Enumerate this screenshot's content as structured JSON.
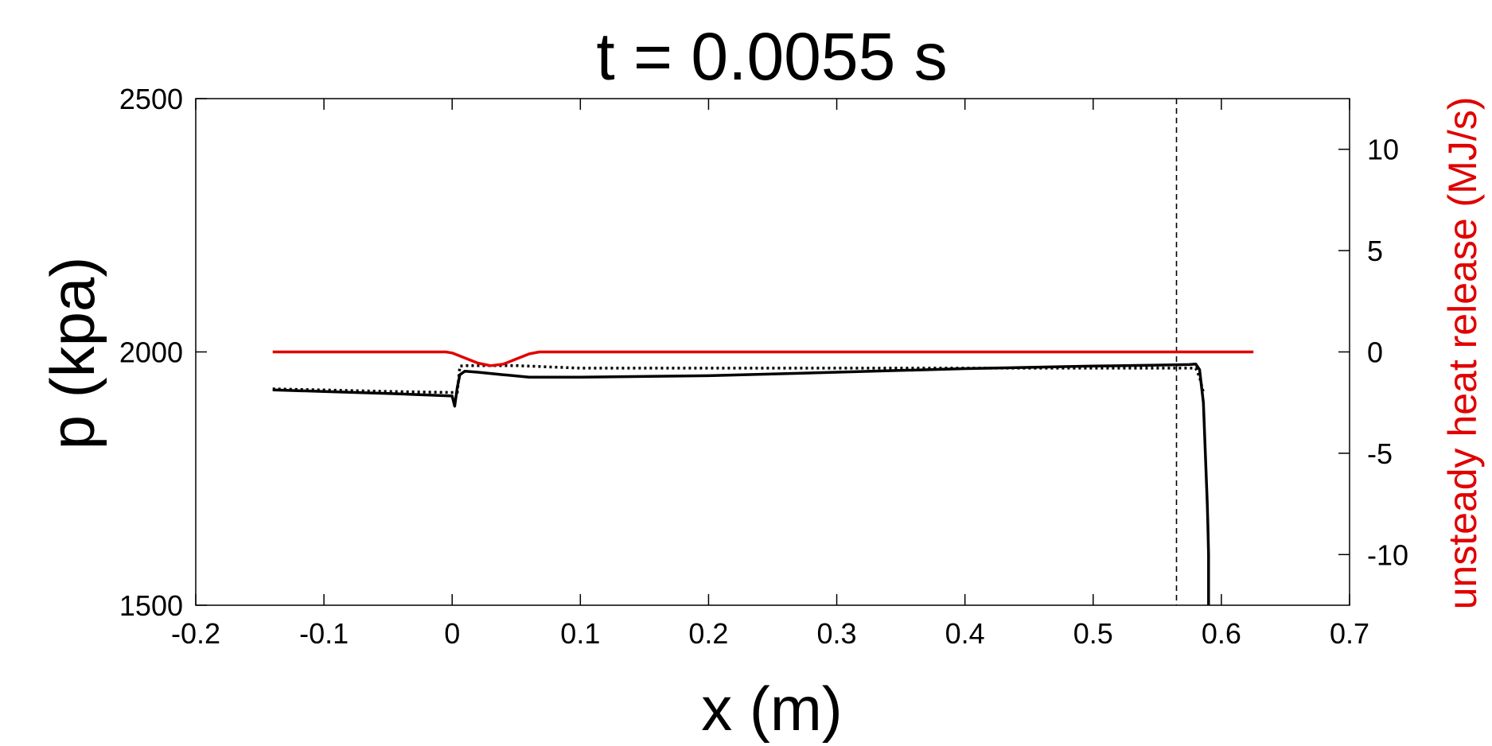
{
  "chart_data": {
    "type": "line",
    "title": "t = 0.0055 s",
    "xlabel": "x (m)",
    "ylabel": "p (kpa)",
    "y2label": "unsteady heat release (MJ/s)",
    "xlim": [
      -0.2,
      0.7
    ],
    "ylim": [
      1500,
      2500
    ],
    "y2lim": [
      -12.5,
      12.5
    ],
    "xticks": [
      -0.2,
      -0.1,
      0,
      0.1,
      0.2,
      0.3,
      0.4,
      0.5,
      0.6,
      0.7
    ],
    "xtick_labels": [
      "-0.2",
      "-0.1",
      "0",
      "0.1",
      "0.2",
      "0.3",
      "0.4",
      "0.5",
      "0.6",
      "0.7"
    ],
    "yticks": [
      1500,
      2000,
      2500
    ],
    "ytick_labels": [
      "1500",
      "2000",
      "2500"
    ],
    "y2ticks": [
      -10,
      -5,
      0,
      5,
      10
    ],
    "y2tick_labels": [
      "-10",
      "-5",
      "0",
      "5",
      "10"
    ],
    "grid": false,
    "colors": {
      "pressure": "#000000",
      "heat_release": "#e00000",
      "axes": "#000000"
    },
    "series": [
      {
        "axis": "left",
        "style": "solid",
        "color": "#000000",
        "x": [
          -0.14,
          -0.1,
          -0.05,
          0.0,
          0.002,
          0.004,
          0.006,
          0.01,
          0.02,
          0.04,
          0.06,
          0.1,
          0.2,
          0.3,
          0.4,
          0.5,
          0.55,
          0.575,
          0.58,
          0.583,
          0.586,
          0.589,
          0.5895,
          0.59,
          0.59
        ],
        "y": [
          1925,
          1922,
          1918,
          1913,
          1893,
          1930,
          1955,
          1962,
          1960,
          1955,
          1950,
          1950,
          1953,
          1960,
          1967,
          1972,
          1974,
          1975,
          1976,
          1965,
          1900,
          1700,
          1655,
          1600,
          1500
        ]
      },
      {
        "axis": "left",
        "style": "dotted",
        "color": "#000000",
        "x": [
          -0.14,
          -0.1,
          -0.05,
          0.0,
          0.004,
          0.006,
          0.01,
          0.05,
          0.1,
          0.2,
          0.3,
          0.4,
          0.5,
          0.58,
          0.583,
          0.586
        ],
        "y": [
          1927,
          1925,
          1922,
          1920,
          1920,
          1972,
          1973,
          1973,
          1968,
          1968,
          1968,
          1968,
          1968,
          1968,
          1950,
          1920
        ]
      },
      {
        "axis": "right",
        "style": "solid",
        "color": "#e00000",
        "x": [
          -0.14,
          -0.05,
          -0.005,
          0.0,
          0.01,
          0.02,
          0.03,
          0.04,
          0.05,
          0.06,
          0.068,
          0.1,
          0.2,
          0.3,
          0.4,
          0.5,
          0.6,
          0.625
        ],
        "y": [
          0,
          0,
          0,
          -0.05,
          -0.3,
          -0.55,
          -0.68,
          -0.6,
          -0.35,
          -0.1,
          0,
          0,
          0,
          0,
          0,
          0,
          0,
          0
        ]
      }
    ],
    "vertical_line": {
      "x": 0.565,
      "style": "dashed",
      "color": "#000000"
    }
  }
}
